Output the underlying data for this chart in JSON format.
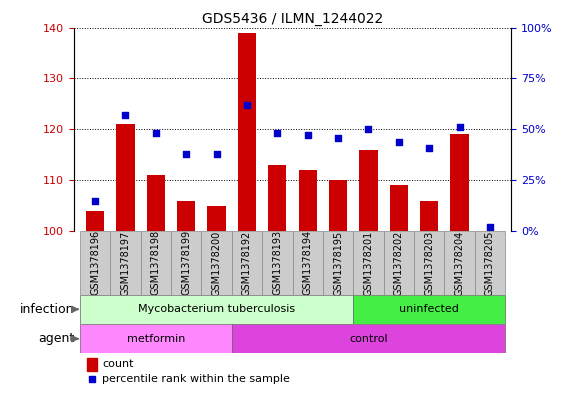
{
  "title": "GDS5436 / ILMN_1244022",
  "samples": [
    "GSM1378196",
    "GSM1378197",
    "GSM1378198",
    "GSM1378199",
    "GSM1378200",
    "GSM1378192",
    "GSM1378193",
    "GSM1378194",
    "GSM1378195",
    "GSM1378201",
    "GSM1378202",
    "GSM1378203",
    "GSM1378204",
    "GSM1378205"
  ],
  "counts": [
    104,
    121,
    111,
    106,
    105,
    139,
    113,
    112,
    110,
    116,
    109,
    106,
    119,
    100
  ],
  "percentiles": [
    15,
    57,
    48,
    38,
    38,
    62,
    48,
    47,
    46,
    50,
    44,
    41,
    51,
    2
  ],
  "ylim_left": [
    100,
    140
  ],
  "ylim_right": [
    0,
    100
  ],
  "yticks_left": [
    100,
    110,
    120,
    130,
    140
  ],
  "yticks_right": [
    0,
    25,
    50,
    75,
    100
  ],
  "bar_color": "#cc0000",
  "dot_color": "#0000cc",
  "infection_groups": [
    {
      "label": "Mycobacterium tuberculosis",
      "start": 0,
      "end": 8,
      "color": "#ccffcc"
    },
    {
      "label": "uninfected",
      "start": 9,
      "end": 13,
      "color": "#44ee44"
    }
  ],
  "agent_groups": [
    {
      "label": "metformin",
      "start": 0,
      "end": 4,
      "color": "#ff88ff"
    },
    {
      "label": "control",
      "start": 5,
      "end": 13,
      "color": "#dd44dd"
    }
  ],
  "infection_label": "infection",
  "agent_label": "agent",
  "legend_count": "count",
  "legend_percentile": "percentile rank within the sample",
  "left_axis_color": "#cc0000",
  "right_axis_color": "#0000cc",
  "background_color": "#ffffff",
  "sample_box_color": "#cccccc",
  "bar_width": 0.6,
  "label_fontsize": 9,
  "tick_fontsize": 8,
  "sample_fontsize": 7
}
